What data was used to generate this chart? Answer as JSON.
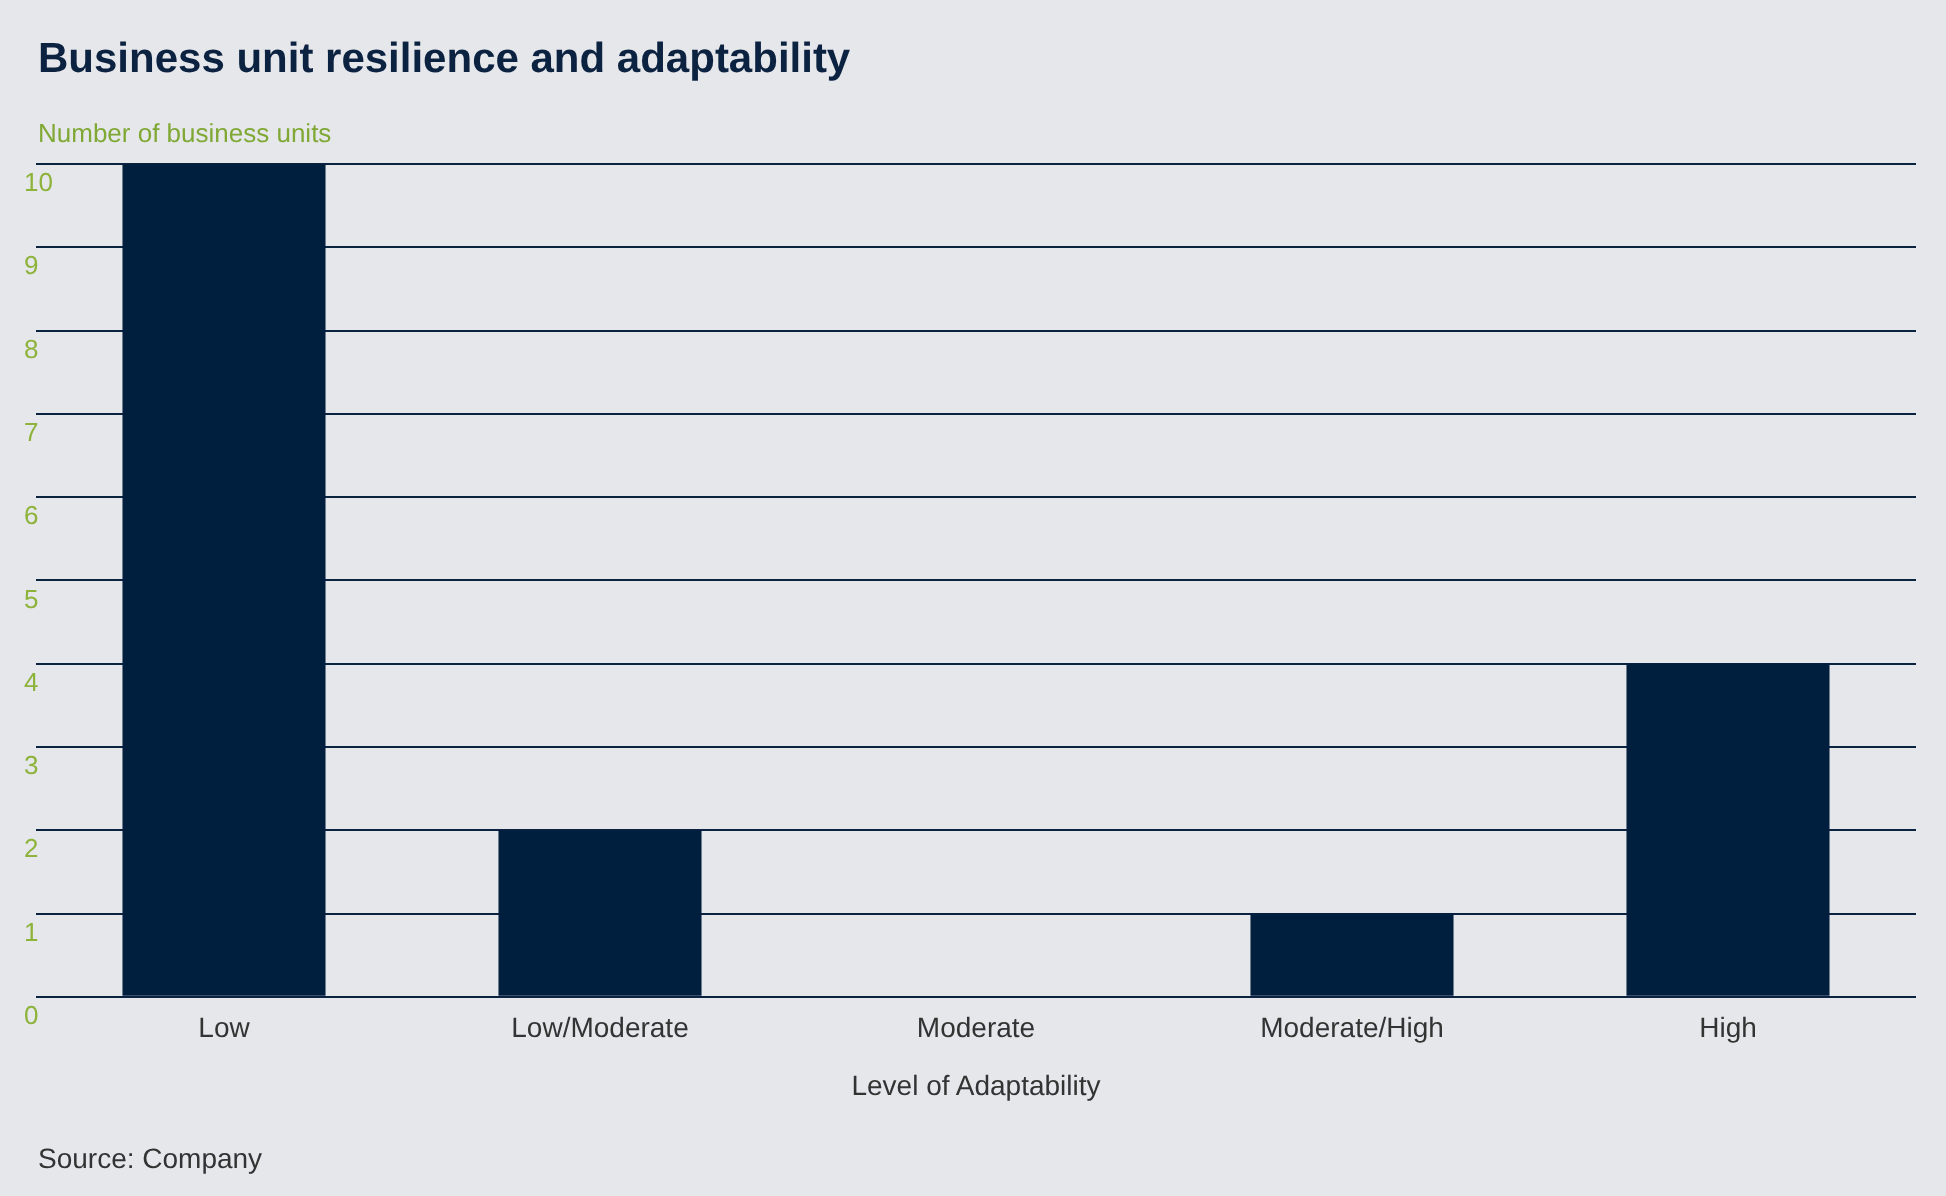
{
  "chart_data": {
    "type": "bar",
    "title": "Business unit resilience and adaptability",
    "ylabel": "Number of business units",
    "xlabel": "Level of Adaptability",
    "categories": [
      "Low",
      "Low/Moderate",
      "Moderate",
      "Moderate/High",
      "High"
    ],
    "values": [
      10,
      2,
      0,
      1,
      4
    ],
    "color": "#001f3f",
    "ylim": [
      0,
      10
    ],
    "yticks": [
      0,
      1,
      2,
      3,
      4,
      5,
      6,
      7,
      8,
      9,
      10
    ],
    "grid": "y",
    "legend": false,
    "annotations": [
      "Source: Company"
    ]
  }
}
